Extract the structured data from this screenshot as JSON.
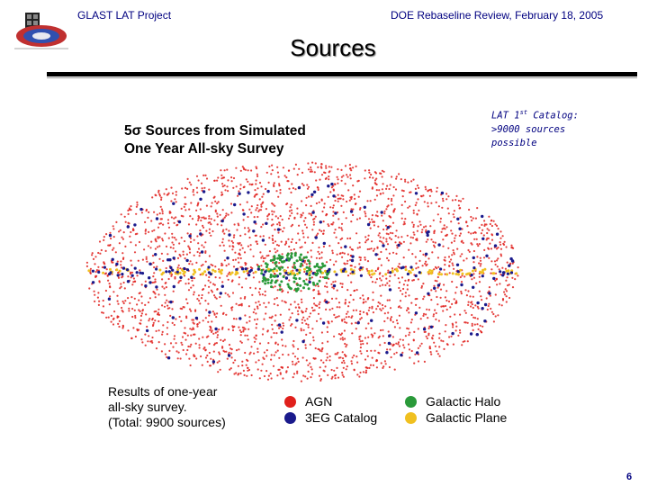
{
  "header": {
    "left": "GLAST LAT Project",
    "right": "DOE Rebaseline Review, February 18, 2005"
  },
  "slide": {
    "title": "Sources",
    "page_number": "6"
  },
  "catalog_note": {
    "line1_prefix": "LAT 1",
    "line1_sup": "st",
    "line1_suffix": " Catalog:",
    "line2": ">9000 sources",
    "line3": "possible"
  },
  "figure": {
    "title_line1": "5σ Sources from Simulated",
    "title_line2": "One Year All-sky Survey",
    "results_line1": "Results of one-year",
    "results_line2": "all-sky survey.",
    "results_line3": "(Total: 9900 sources)",
    "legend": [
      {
        "label": "AGN",
        "color": "#e0201c"
      },
      {
        "label": "3EG Catalog",
        "color": "#1a1a8c"
      },
      {
        "label": "Galactic Halo",
        "color": "#2a9a3a"
      },
      {
        "label": "Galactic Plane",
        "color": "#f0c020"
      }
    ]
  }
}
